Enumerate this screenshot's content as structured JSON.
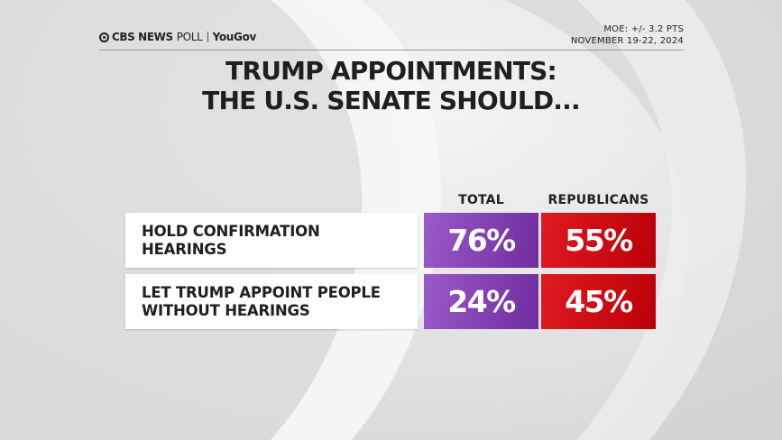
{
  "header": {
    "brand_network": "CBS NEWS",
    "brand_poll": "POLL",
    "brand_partner": "YouGov",
    "moe": "MOE: +/- 3.2 PTS",
    "dates": "NOVEMBER 19-22, 2024"
  },
  "colors": {
    "total": "#8447b3",
    "republicans": "#d10f16",
    "text": "#1f1f1f",
    "background": "#e4e4e4"
  },
  "chart_data": {
    "type": "table",
    "title_lines": [
      "TRUMP APPOINTMENTS:",
      "THE U.S. SENATE SHOULD..."
    ],
    "columns": [
      "TOTAL",
      "REPUBLICANS"
    ],
    "rows": [
      {
        "label_lines": [
          "HOLD CONFIRMATION",
          "HEARINGS"
        ],
        "values": [
          76,
          55
        ],
        "display": [
          "76%",
          "55%"
        ]
      },
      {
        "label_lines": [
          "LET TRUMP APPOINT PEOPLE",
          "WITHOUT HEARINGS"
        ],
        "values": [
          24,
          45
        ],
        "display": [
          "24%",
          "45%"
        ]
      }
    ]
  }
}
